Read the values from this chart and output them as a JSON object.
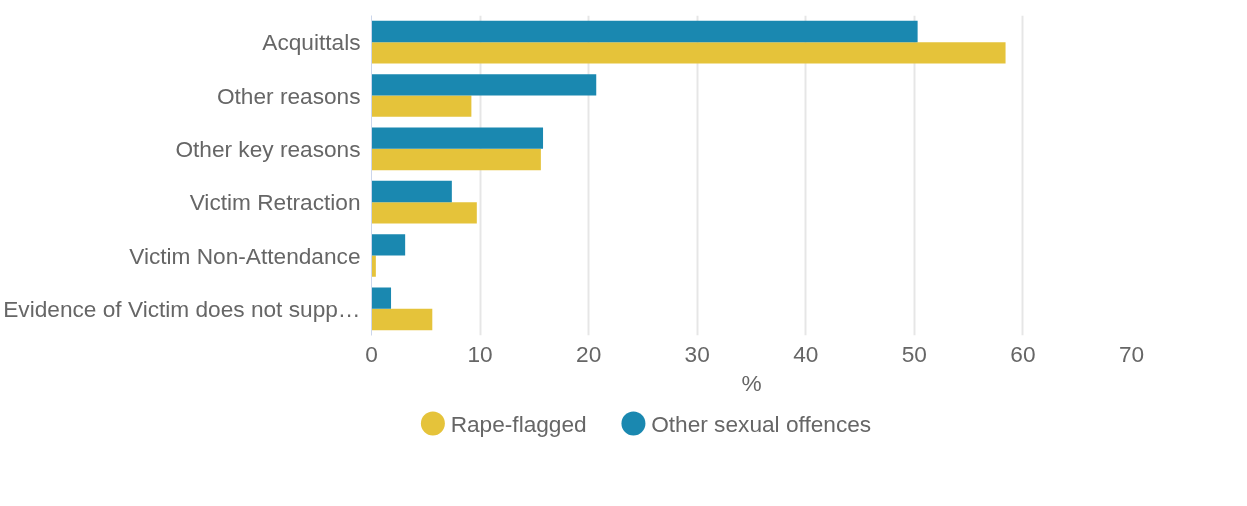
{
  "chart_data": {
    "type": "bar",
    "orientation": "horizontal",
    "xlabel": "%",
    "categories": [
      "Acquittals",
      "Other reasons",
      "Other key reasons",
      "Victim Retraction",
      "Victim Non-Attendance",
      "Evidence of Victim does not supp…"
    ],
    "series": [
      {
        "name": "Rape-flagged",
        "color": "#e5c33a",
        "values": [
          58.4,
          9.2,
          15.6,
          9.7,
          0.4,
          5.6
        ]
      },
      {
        "name": "Other sexual offences",
        "color": "#1a88b0",
        "values": [
          50.3,
          20.7,
          15.8,
          7.4,
          3.1,
          1.8
        ]
      }
    ],
    "xlim": [
      0,
      70
    ],
    "xticks": [
      0,
      10,
      20,
      30,
      40,
      50,
      60,
      70
    ],
    "grid": "x",
    "legend": "bottom left"
  }
}
